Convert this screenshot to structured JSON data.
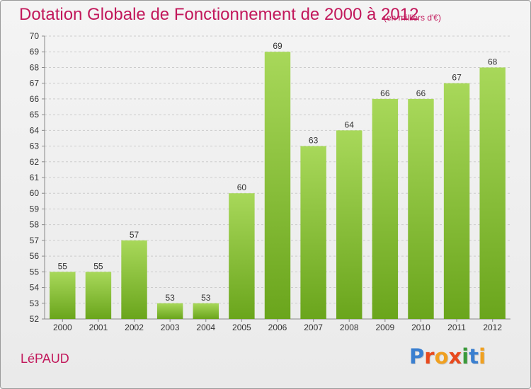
{
  "title": "Dotation Globale de Fonctionnement de 2000 à 2012",
  "subtitle": "(en milliers d'€)",
  "commune": "LéPAUD",
  "logo": {
    "letters": [
      "P",
      "r",
      "o",
      "x",
      "i",
      "t",
      "i"
    ],
    "colors": [
      "#3a7fd0",
      "#e8491d",
      "#f0a020",
      "#e8491d",
      "#3a9a3a",
      "#3a7fd0",
      "#f0a020"
    ]
  },
  "colors": {
    "bar_light": "#a8d85a",
    "bar_dark": "#6aa51c",
    "title": "#c2185b",
    "grid": "#cccccc"
  },
  "chart_data": {
    "type": "bar",
    "categories": [
      "2000",
      "2001",
      "2002",
      "2003",
      "2004",
      "2005",
      "2006",
      "2007",
      "2008",
      "2009",
      "2010",
      "2011",
      "2012"
    ],
    "values": [
      55,
      55,
      57,
      53,
      53,
      60,
      69,
      63,
      64,
      66,
      66,
      67,
      68
    ],
    "data_labels": [
      "55",
      "55",
      "57",
      "53",
      "53",
      "60",
      "69",
      "63",
      "64",
      "66",
      "66",
      "67",
      "68"
    ],
    "ylim": [
      52,
      70
    ],
    "yticks": [
      "52",
      "53",
      "54",
      "55",
      "56",
      "57",
      "58",
      "59",
      "60",
      "61",
      "62",
      "63",
      "64",
      "65",
      "66",
      "67",
      "68",
      "69",
      "70"
    ],
    "grid": true,
    "xlabel": "",
    "ylabel": ""
  }
}
